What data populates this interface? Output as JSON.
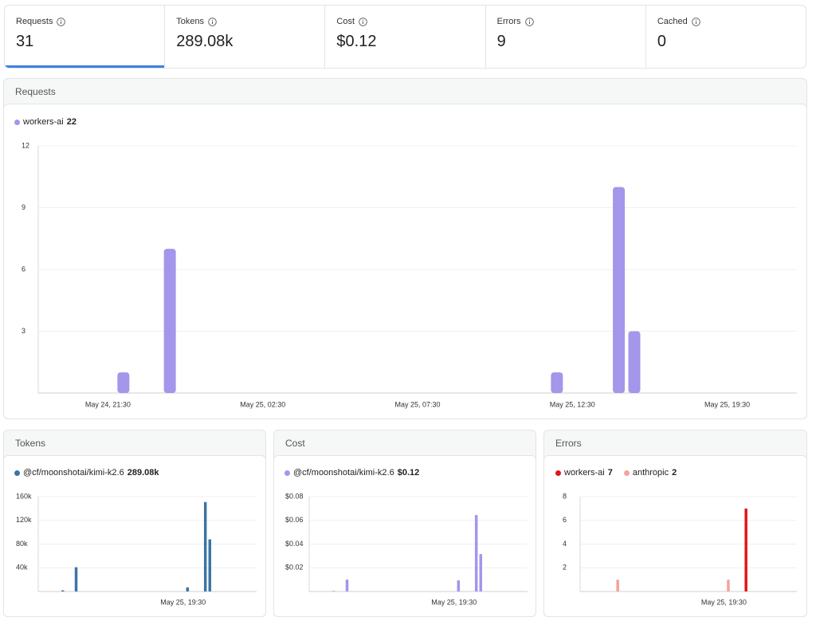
{
  "stats": [
    {
      "label": "Requests",
      "value": "31"
    },
    {
      "label": "Tokens",
      "value": "289.08k"
    },
    {
      "label": "Cost",
      "value": "$0.12"
    },
    {
      "label": "Errors",
      "value": "9"
    },
    {
      "label": "Cached",
      "value": "0"
    }
  ],
  "chart_data": [
    {
      "type": "bar",
      "title": "Requests",
      "categories": [
        null,
        null,
        null,
        null,
        "May 24, 21:30",
        null,
        null,
        null,
        null,
        null,
        null,
        null,
        null,
        null,
        "May 25, 02:30",
        null,
        null,
        null,
        null,
        null,
        null,
        null,
        null,
        null,
        "May 25, 07:30",
        null,
        null,
        null,
        null,
        null,
        null,
        null,
        null,
        null,
        "May 25, 12:30",
        null,
        null,
        null,
        null,
        null,
        null,
        null,
        null,
        null,
        "May 25, 19:30",
        null,
        null,
        null,
        null
      ],
      "series": [
        {
          "name": "workers-ai",
          "total": "22",
          "color": "#a396eb",
          "values": [
            0,
            0,
            0,
            0,
            0,
            1,
            0,
            0,
            7,
            0,
            0,
            0,
            0,
            0,
            0,
            0,
            0,
            0,
            0,
            0,
            0,
            0,
            0,
            0,
            0,
            0,
            0,
            0,
            0,
            0,
            0,
            0,
            0,
            1,
            0,
            0,
            0,
            10,
            3,
            0,
            0,
            0,
            0,
            0,
            0,
            0,
            0,
            0,
            0
          ]
        }
      ],
      "ylim": [
        0,
        12
      ],
      "yticks": [
        3,
        6,
        9,
        12
      ],
      "grid": true
    },
    {
      "type": "bar",
      "title": "Tokens",
      "categories": [
        null,
        null,
        null,
        null,
        null,
        null,
        null,
        null,
        null,
        null,
        null,
        null,
        null,
        null,
        null,
        null,
        null,
        null,
        null,
        null,
        null,
        null,
        null,
        null,
        null,
        null,
        null,
        null,
        null,
        null,
        null,
        null,
        "May 25, 19:30",
        null,
        null,
        null,
        null,
        null,
        null,
        null,
        null,
        null,
        null,
        null,
        null,
        null,
        null,
        null,
        null
      ],
      "series": [
        {
          "name": "@cf/moonshotai/kimi-k2.6",
          "total": "289.08k",
          "color": "#3d74a3",
          "values": [
            0,
            0,
            0,
            0,
            0,
            2000,
            0,
            0,
            41000,
            0,
            0,
            0,
            0,
            0,
            0,
            0,
            0,
            0,
            0,
            0,
            0,
            0,
            0,
            0,
            0,
            0,
            0,
            0,
            0,
            0,
            0,
            0,
            0,
            7000,
            0,
            0,
            0,
            151000,
            88000,
            0,
            0,
            0,
            0,
            0,
            0,
            0,
            0,
            0,
            0
          ]
        }
      ],
      "ylim": [
        0,
        160000
      ],
      "yticks": [
        {
          "value": 40000,
          "label": "40k"
        },
        {
          "value": 80000,
          "label": "80k"
        },
        {
          "value": 120000,
          "label": "120k"
        },
        {
          "value": 160000,
          "label": "160k"
        }
      ],
      "grid": true
    },
    {
      "type": "bar",
      "title": "Cost",
      "categories": [
        null,
        null,
        null,
        null,
        null,
        null,
        null,
        null,
        null,
        null,
        null,
        null,
        null,
        null,
        null,
        null,
        null,
        null,
        null,
        null,
        null,
        null,
        null,
        null,
        null,
        null,
        null,
        null,
        null,
        null,
        null,
        null,
        "May 25, 19:30",
        null,
        null,
        null,
        null,
        null,
        null,
        null,
        null,
        null,
        null,
        null,
        null,
        null,
        null,
        null,
        null
      ],
      "series": [
        {
          "name": "@cf/moonshotai/kimi-k2.6",
          "total": "$0.12",
          "color": "#a396eb",
          "values": [
            0,
            0,
            0,
            0,
            0,
            0.0005,
            0,
            0,
            0.0101,
            0,
            0,
            0,
            0,
            0,
            0,
            0,
            0,
            0,
            0,
            0,
            0,
            0,
            0,
            0,
            0,
            0,
            0,
            0,
            0,
            0,
            0,
            0,
            0,
            0.0094,
            0,
            0,
            0,
            0.0645,
            0.0316,
            0,
            0,
            0,
            0,
            0,
            0,
            0,
            0,
            0,
            0
          ]
        }
      ],
      "ylim": [
        0,
        0.08
      ],
      "yticks": [
        {
          "value": 0.02,
          "label": "$0.02"
        },
        {
          "value": 0.04,
          "label": "$0.04"
        },
        {
          "value": 0.06,
          "label": "$0.06"
        },
        {
          "value": 0.08,
          "label": "$0.08"
        }
      ],
      "grid": true
    },
    {
      "type": "bar",
      "title": "Errors",
      "categories": [
        null,
        null,
        null,
        null,
        null,
        null,
        null,
        null,
        null,
        null,
        null,
        null,
        null,
        null,
        null,
        null,
        null,
        null,
        null,
        null,
        null,
        null,
        null,
        null,
        null,
        null,
        null,
        null,
        null,
        null,
        null,
        null,
        "May 25, 19:30",
        null,
        null,
        null,
        null,
        null,
        null,
        null,
        null,
        null,
        null,
        null,
        null,
        null,
        null,
        null,
        null
      ],
      "series": [
        {
          "name": "workers-ai",
          "total": "7",
          "color": "#e0161b",
          "values": [
            0,
            0,
            0,
            0,
            0,
            0,
            0,
            0,
            0,
            0,
            0,
            0,
            0,
            0,
            0,
            0,
            0,
            0,
            0,
            0,
            0,
            0,
            0,
            0,
            0,
            0,
            0,
            0,
            0,
            0,
            0,
            0,
            0,
            0,
            0,
            0,
            0,
            7,
            0,
            0,
            0,
            0,
            0,
            0,
            0,
            0,
            0,
            0,
            0
          ]
        },
        {
          "name": "anthropic",
          "total": "2",
          "color": "#f5a39a",
          "values": [
            0,
            0,
            0,
            0,
            0,
            0,
            0,
            0,
            1,
            0,
            0,
            0,
            0,
            0,
            0,
            0,
            0,
            0,
            0,
            0,
            0,
            0,
            0,
            0,
            0,
            0,
            0,
            0,
            0,
            0,
            0,
            0,
            0,
            1,
            0,
            0,
            0,
            0,
            0,
            0,
            0,
            0,
            0,
            0,
            0,
            0,
            0,
            0,
            0
          ]
        }
      ],
      "ylim": [
        0,
        8
      ],
      "yticks": [
        2,
        4,
        6,
        8
      ],
      "grid": true
    }
  ]
}
